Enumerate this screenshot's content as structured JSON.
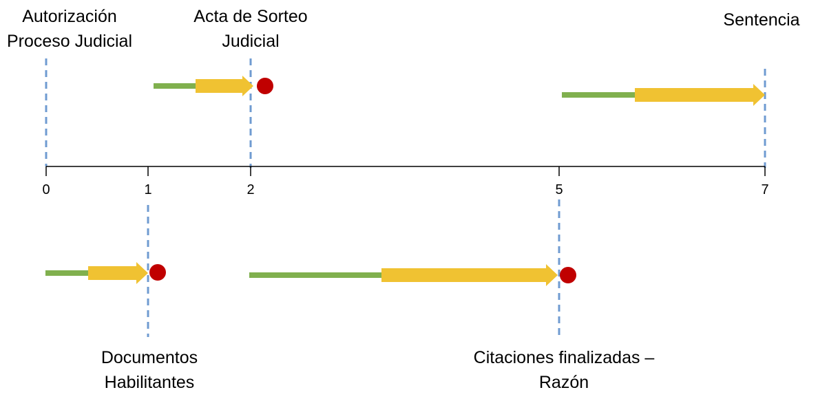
{
  "labels": {
    "autorizacion": [
      "Autorización",
      "Proceso Judicial"
    ],
    "acta": [
      "Acta de Sorteo",
      "Judicial"
    ],
    "sentencia": [
      "Sentencia"
    ],
    "documentos": [
      "Documentos",
      "Habilitantes"
    ],
    "citaciones": [
      "Citaciones finalizadas –",
      "Razón"
    ]
  },
  "ticks": [
    "0",
    "1",
    "2",
    "5",
    "7"
  ],
  "colors": {
    "axis": "#000000",
    "dashed": "#6f9bd1",
    "green": "#80b04e",
    "yellow": "#f0c232",
    "marker": "#c00000"
  }
}
